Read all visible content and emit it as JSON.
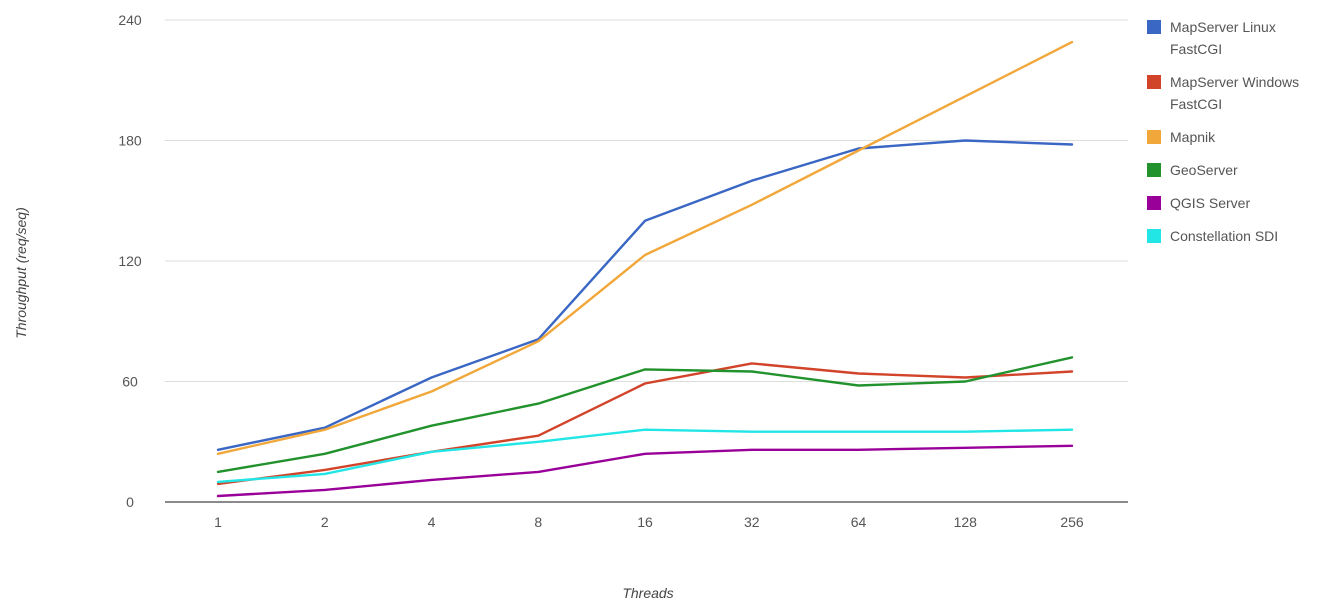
{
  "chart_data": {
    "type": "line",
    "title": "",
    "xlabel": "Threads",
    "ylabel": "Throughput (req/seq)",
    "categories": [
      "1",
      "2",
      "4",
      "8",
      "16",
      "32",
      "64",
      "128",
      "256"
    ],
    "ylim": [
      0,
      240
    ],
    "yticks": [
      "0",
      "60",
      "120",
      "180",
      "240"
    ],
    "grid": true,
    "legend_position": "right",
    "series": [
      {
        "name": [
          "MapServer Linux",
          "FastCGI"
        ],
        "color": "#3a66c4",
        "values": [
          26,
          37,
          62,
          81,
          140,
          160,
          176,
          180,
          178
        ]
      },
      {
        "name": [
          "MapServer Windows",
          "FastCGI"
        ],
        "color": "#d2442a",
        "values": [
          9,
          16,
          25,
          33,
          59,
          69,
          64,
          62,
          65
        ]
      },
      {
        "name": [
          "Mapnik"
        ],
        "color": "#f1a73a",
        "values": [
          24,
          36,
          55,
          80,
          123,
          148,
          175,
          202,
          229
        ]
      },
      {
        "name": [
          "GeoServer"
        ],
        "color": "#22922d",
        "values": [
          15,
          24,
          38,
          49,
          66,
          65,
          58,
          60,
          72
        ]
      },
      {
        "name": [
          "QGIS Server"
        ],
        "color": "#990099",
        "values": [
          3,
          6,
          11,
          15,
          24,
          26,
          26,
          27,
          28
        ]
      },
      {
        "name": [
          "Constellation SDI"
        ],
        "color": "#22e5e6",
        "values": [
          10,
          14,
          25,
          30,
          36,
          35,
          35,
          35,
          36
        ]
      }
    ]
  }
}
